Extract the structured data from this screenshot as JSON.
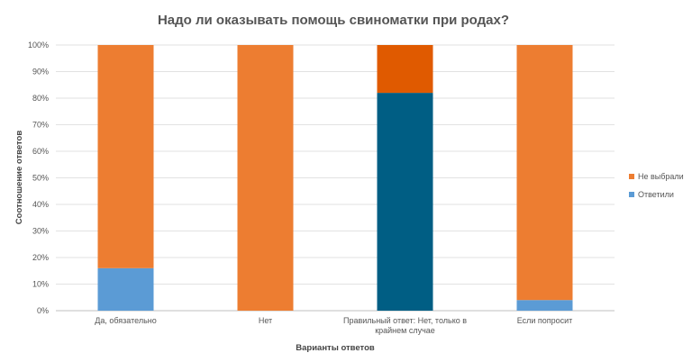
{
  "chart_data": {
    "type": "bar",
    "stacked": true,
    "title": "Надо ли оказывать помощь свиноматки при родах?",
    "xlabel": "Варианты ответов",
    "ylabel": "Соотношение ответов",
    "ylim": [
      0,
      100
    ],
    "yticks": [
      "0%",
      "10%",
      "20%",
      "30%",
      "40%",
      "50%",
      "60%",
      "70%",
      "80%",
      "90%",
      "100%"
    ],
    "grid": true,
    "legend_position": "right",
    "categories": [
      [
        "Да, обязательно"
      ],
      [
        "Нет"
      ],
      [
        "Правильный ответ: Нет, только в",
        "крайнем случае"
      ],
      [
        "Если попросит"
      ]
    ],
    "series": [
      {
        "name": "Ответили",
        "values": [
          16,
          0,
          82,
          4
        ],
        "colors": [
          "#5b9bd5",
          "#5b9bd5",
          "#005e84",
          "#5b9bd5"
        ]
      },
      {
        "name": "Не выбрали",
        "values": [
          84,
          100,
          18,
          96
        ],
        "colors": [
          "#ed7d31",
          "#ed7d31",
          "#e05a00",
          "#ed7d31"
        ]
      }
    ],
    "legend": [
      {
        "name": "Не выбрали",
        "color": "#ed7d31"
      },
      {
        "name": "Ответили",
        "color": "#5b9bd5"
      }
    ]
  }
}
